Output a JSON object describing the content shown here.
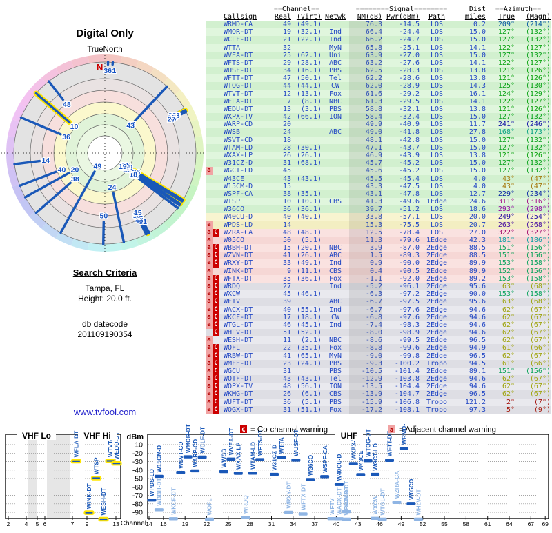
{
  "title": "Digital Only",
  "radar": {
    "subtitle": "TrueNorth",
    "north": "N"
  },
  "search": {
    "heading": "Search Criteria",
    "location": "Tampa, FL",
    "height": "Height: 20.0 ft.",
    "db_label": "db datecode",
    "db_code": "201109190354"
  },
  "link": "www.tvfool.com",
  "legend": {
    "c": "C",
    "c_text": "= Co-channel warning",
    "a": "a",
    "a_text": "= Adjacent channel warning"
  },
  "table": {
    "header1": {
      "channel": "==Channel==",
      "signal": "========Signal========",
      "dist": "Dist",
      "azimuth": "==Azimuth=="
    },
    "header2": {
      "callsign": "Callsign",
      "real": "Real",
      "virt": "(Virt)",
      "netwk": "Netwk",
      "nm": "NM(dB)",
      "pwr": "Pwr(dBm)",
      "path": "Path",
      "miles": "miles",
      "true": "True",
      "magn": "(Magn)"
    }
  },
  "spectrum": {
    "vhf_lo": "VHF Lo",
    "vhf_hi": "VHF Hi",
    "uhf": "UHF",
    "dbm": "dBm",
    "channel": "Channel",
    "dbm_ticks": [
      -10,
      -20,
      -30,
      -40,
      -50,
      -60,
      -70,
      -80,
      -90
    ],
    "vhf_ticks": [
      2,
      4,
      5,
      6,
      7,
      9,
      13
    ],
    "uhf_ticks": [
      14,
      16,
      19,
      22,
      25,
      28,
      31,
      34,
      37,
      40,
      43,
      46,
      49,
      52,
      55,
      58,
      61,
      64,
      67,
      69
    ]
  },
  "colors": {
    "station_blue": "#1a58b8",
    "weak_blue": "#8fb5e4",
    "vhf_highlight": "#ffe600",
    "co_warning_bg": "#cc0000",
    "adj_warning_bg": "#f1a3a3",
    "link_blue": "#2222cc",
    "north_red": "#cc0000"
  },
  "chart_data": {
    "type": "table",
    "title": "Digital Only",
    "station_fields": [
      "callsign",
      "real_ch",
      "virt_ch",
      "network",
      "nm_db",
      "pwr_dbm",
      "path",
      "dist_miles",
      "az_true_deg",
      "az_magn_deg",
      "warnings"
    ],
    "stations": [
      [
        "WRMD-CA",
        49,
        "(49.1)",
        "",
        76.3,
        -14.5,
        "LOS",
        0.2,
        209,
        214,
        ""
      ],
      [
        "WMOR-DT",
        19,
        "(32.1)",
        "Ind",
        66.4,
        -24.4,
        "LOS",
        15.0,
        127,
        132,
        ""
      ],
      [
        "WCLF-DT",
        21,
        "(22.1)",
        "Ind",
        66.2,
        -24.7,
        "LOS",
        15.0,
        127,
        132,
        ""
      ],
      [
        "WTTA",
        32,
        "",
        "MyN",
        65.8,
        -25.1,
        "LOS",
        14.1,
        122,
        127,
        ""
      ],
      [
        "WVEA-DT",
        25,
        "(62.1)",
        "Uni",
        63.9,
        -27.0,
        "LOS",
        15.0,
        127,
        132,
        ""
      ],
      [
        "WFTS-DT",
        29,
        "(28.1)",
        "ABC",
        63.2,
        -27.6,
        "LOS",
        14.1,
        122,
        127,
        ""
      ],
      [
        "WUSF-DT",
        34,
        "(16.1)",
        "PBS",
        62.5,
        -28.3,
        "LOS",
        13.8,
        121,
        126,
        ""
      ],
      [
        "WFTT-DT",
        47,
        "(50.1)",
        "Tel",
        62.2,
        -28.6,
        "LOS",
        13.8,
        121,
        126,
        ""
      ],
      [
        "WTOG-DT",
        44,
        "(44.1)",
        "CW",
        62.0,
        -28.9,
        "LOS",
        14.3,
        125,
        130,
        ""
      ],
      [
        "WTVT-DT",
        12,
        "(13.1)",
        "Fox",
        61.6,
        -29.2,
        "LOS",
        16.1,
        124,
        129,
        ""
      ],
      [
        "WFLA-DT",
        7,
        "(8.1)",
        "NBC",
        61.3,
        -29.5,
        "LOS",
        14.1,
        122,
        127,
        ""
      ],
      [
        "WEDU-DT",
        13,
        "(3.1)",
        "PBS",
        58.8,
        -32.1,
        "LOS",
        13.8,
        121,
        126,
        ""
      ],
      [
        "WXPX-TV",
        42,
        "(66.1)",
        "ION",
        58.4,
        -32.4,
        "LOS",
        15.0,
        127,
        132,
        ""
      ],
      [
        "WARP-CD",
        20,
        "",
        "",
        49.9,
        -40.9,
        "LOS",
        11.7,
        241,
        246,
        ""
      ],
      [
        "WWSB",
        24,
        "",
        "ABC",
        49.0,
        -41.8,
        "LOS",
        27.8,
        168,
        173,
        ""
      ],
      [
        "WSVT-CD",
        18,
        "",
        "",
        48.1,
        -42.8,
        "LOS",
        15.0,
        127,
        132,
        ""
      ],
      [
        "WTAM-LD",
        28,
        "(30.1)",
        "",
        47.1,
        -43.7,
        "LOS",
        15.0,
        127,
        132,
        ""
      ],
      [
        "WXAX-LP",
        26,
        "(26.1)",
        "",
        46.9,
        -43.9,
        "LOS",
        13.8,
        121,
        126,
        ""
      ],
      [
        "W31CZ-D",
        31,
        "(68.1)",
        "",
        45.7,
        -45.2,
        "LOS",
        15.0,
        127,
        132,
        ""
      ],
      [
        "WGCT-LD",
        45,
        "",
        "",
        45.6,
        -45.2,
        "LOS",
        15.0,
        127,
        132,
        "a"
      ],
      [
        "W43CE",
        43,
        "(43.1)",
        "",
        45.5,
        -45.4,
        "LOS",
        4.0,
        43,
        47,
        ""
      ],
      [
        "W15CM-D",
        15,
        "",
        "",
        43.3,
        -47.5,
        "LOS",
        4.0,
        43,
        47,
        ""
      ],
      [
        "WSPF-CA",
        38,
        "(35.1)",
        "",
        43.1,
        -47.8,
        "LOS",
        12.7,
        229,
        234,
        ""
      ],
      [
        "WTSP",
        10,
        "(10.1)",
        "CBS",
        41.3,
        -49.6,
        "1Edge",
        24.6,
        311,
        316,
        ""
      ],
      [
        "W36CO",
        36,
        "(36.1)",
        "",
        39.7,
        -51.2,
        "LOS",
        18.6,
        293,
        298,
        ""
      ],
      [
        "W40CU-D",
        40,
        "(40.1)",
        "",
        33.8,
        -57.1,
        "LOS",
        20.0,
        249,
        254,
        ""
      ],
      [
        "WPDS-LD",
        14,
        "",
        "",
        15.3,
        -75.5,
        "LOS",
        20.7,
        263,
        268,
        "a"
      ],
      [
        "WZRA-CA",
        48,
        "(48.1)",
        "",
        12.5,
        -78.4,
        "LOS",
        27.0,
        322,
        327,
        "aC"
      ],
      [
        "W05CO",
        50,
        "(5.1)",
        "",
        11.3,
        -79.6,
        "1Edge",
        42.3,
        181,
        186,
        "a"
      ],
      [
        "WBBH-DT",
        15,
        "(20.1)",
        "NBC",
        3.9,
        -87.0,
        "2Edge",
        88.5,
        151,
        156,
        "aC"
      ],
      [
        "WZVN-DT",
        41,
        "(26.1)",
        "ABC",
        1.5,
        -89.3,
        "2Edge",
        88.5,
        151,
        156,
        "aC"
      ],
      [
        "WRXY-DT",
        33,
        "(49.1)",
        "Ind",
        0.9,
        -90.0,
        "2Edge",
        89.9,
        153,
        158,
        "aC"
      ],
      [
        "WINK-DT",
        9,
        "(11.1)",
        "CBS",
        0.4,
        -90.5,
        "2Edge",
        89.9,
        152,
        156,
        "a"
      ],
      [
        "WFTX-DT",
        35,
        "(36.1)",
        "Fox",
        -1.1,
        -92.0,
        "2Edge",
        89.2,
        153,
        158,
        "aC"
      ],
      [
        "WRDQ",
        27,
        "",
        "Ind",
        -5.2,
        -96.1,
        "2Edge",
        95.6,
        63,
        68,
        "aC"
      ],
      [
        "WXCW",
        45,
        "(46.1)",
        "",
        -6.3,
        -97.2,
        "2Edge",
        90.0,
        153,
        158,
        "aC"
      ],
      [
        "WFTV",
        39,
        "",
        "ABC",
        -6.7,
        -97.5,
        "2Edge",
        95.6,
        63,
        68,
        "aC"
      ],
      [
        "WACX-DT",
        40,
        "(55.1)",
        "Ind",
        -6.7,
        -97.6,
        "2Edge",
        94.6,
        62,
        67,
        "aC"
      ],
      [
        "WKCF-DT",
        17,
        "(18.1)",
        "CW",
        -6.8,
        -97.6,
        "2Edge",
        94.6,
        62,
        67,
        "aC"
      ],
      [
        "WTGL-DT",
        46,
        "(45.1)",
        "Ind",
        -7.4,
        -98.3,
        "2Edge",
        94.6,
        62,
        67,
        "aC"
      ],
      [
        "WHLV-DT",
        51,
        "(52.1)",
        "",
        -8.0,
        -98.9,
        "2Edge",
        94.6,
        62,
        67,
        "C"
      ],
      [
        "WESH-DT",
        11,
        "(2.1)",
        "NBC",
        -8.6,
        -99.5,
        "2Edge",
        96.5,
        62,
        67,
        "a"
      ],
      [
        "WOFL",
        22,
        "(35.1)",
        "Fox",
        -8.8,
        -99.6,
        "2Edge",
        94.9,
        61,
        66,
        "aC"
      ],
      [
        "WRBW-DT",
        41,
        "(65.1)",
        "MyN",
        -9.0,
        -99.8,
        "2Edge",
        96.5,
        62,
        67,
        "aC"
      ],
      [
        "WMFE-DT",
        23,
        "(24.1)",
        "PBS",
        -9.3,
        -100.2,
        "Tropo",
        94.5,
        61,
        66,
        "aC"
      ],
      [
        "WGCU",
        31,
        "",
        "PBS",
        -10.5,
        -101.4,
        "2Edge",
        89.1,
        151,
        156,
        "aC"
      ],
      [
        "WOTF-DT",
        43,
        "(43.1)",
        "Tel",
        -12.9,
        -103.8,
        "2Edge",
        94.6,
        62,
        67,
        "aC"
      ],
      [
        "WOPX-TV",
        48,
        "(56.1)",
        "ION",
        -13.5,
        -104.4,
        "2Edge",
        94.6,
        62,
        67,
        "aC"
      ],
      [
        "WKMG-DT",
        26,
        "(6.1)",
        "CBS",
        -13.9,
        -104.7,
        "2Edge",
        96.5,
        62,
        67,
        "aC"
      ],
      [
        "WUFT-DT",
        36,
        "(5.1)",
        "PBS",
        -15.9,
        -106.8,
        "Tropo",
        121.2,
        2,
        7,
        "aC"
      ],
      [
        "WOGX-DT",
        31,
        "(51.1)",
        "Fox",
        -17.2,
        -108.1,
        "Tropo",
        97.3,
        5,
        9,
        "aC"
      ]
    ],
    "radar_plot": {
      "type": "polar",
      "angle": "az_true_deg",
      "radius": "signal strength (stronger = closer to center)",
      "point_label": "real_ch",
      "vhf_highlight": "yellow outline for real channel <= 13"
    },
    "spectrum_plot": {
      "type": "scatter",
      "x": "real channel (VHF Lo 2-6, VHF Hi 7-13, UHF 14-69)",
      "y": "pwr_dbm",
      "ylim": [
        0,
        -99
      ],
      "note": "bars below about -100 dBm not drawn; light blue = co-channel warning; yellow outline = VHF station"
    }
  }
}
